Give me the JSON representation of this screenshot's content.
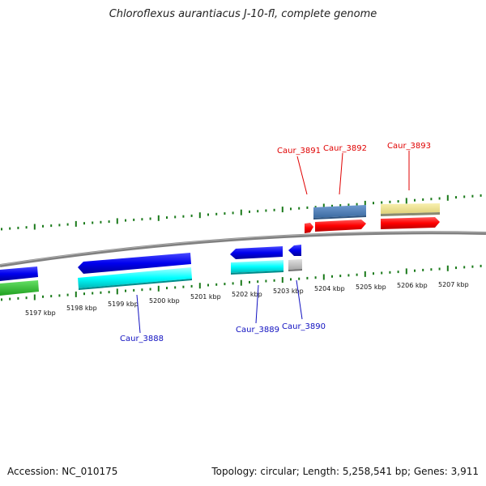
{
  "title": "Chloroflexus aurantiacus J-10-fl, complete genome",
  "footer": {
    "accession": "Accession: NC_010175",
    "summary": "Topology: circular; Length: 5,258,541 bp; Genes: 3,911"
  },
  "scale_labels": [
    "5197 kbp",
    "5198 kbp",
    "5199 kbp",
    "5200 kbp",
    "5201 kbp",
    "5202 kbp",
    "5203 kbp",
    "5204 kbp",
    "5205 kbp",
    "5206 kbp",
    "5207 kbp"
  ],
  "gene_labels": {
    "forward": [
      "Caur_3891",
      "Caur_3892",
      "Caur_3893"
    ],
    "reverse": [
      "Caur_3888",
      "Caur_3889",
      "Caur_3890"
    ]
  },
  "colors": {
    "backbone": "#808080",
    "tick": "#1a7a1a",
    "cds_forward": "#ff0000",
    "cds_reverse": "#0000ee",
    "reverse_aux": "#00ffff",
    "steelblue_feature": "#4f7fb8",
    "khaki_feature": "#f0e68c",
    "green_feature": "#33cc33",
    "gray_feature": "#c0c0c0",
    "label_forward": "#e00000",
    "label_reverse": "#1010c0"
  }
}
